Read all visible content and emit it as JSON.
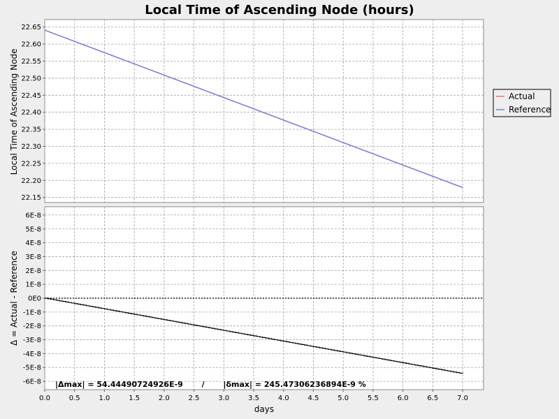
{
  "chart_data": {
    "title": "Local Time of Ascending Node (hours)",
    "xlabel": "days",
    "xlim": [
      0.0,
      7.35
    ],
    "x_ticks": [
      "0.0",
      "0.5",
      "1.0",
      "1.5",
      "2.0",
      "2.5",
      "3.0",
      "3.5",
      "4.0",
      "4.5",
      "5.0",
      "5.5",
      "6.0",
      "6.5",
      "7.0"
    ],
    "grid": true,
    "legend_position": "right",
    "legend": [
      "Actual",
      "Reference"
    ],
    "colors": {
      "Actual": "#ff6b6b",
      "Reference": "#7b7bd6",
      "delta": "#000000",
      "zero_line": "#000000"
    },
    "panels": [
      {
        "type": "line",
        "ylabel": "Local Time of Ascending Node",
        "ylim": [
          22.135,
          22.672
        ],
        "y_ticks": [
          "22.15",
          "22.20",
          "22.25",
          "22.30",
          "22.35",
          "22.40",
          "22.45",
          "22.50",
          "22.55",
          "22.60",
          "22.65"
        ],
        "series": [
          {
            "name": "Actual",
            "x": [
              0.0,
              7.0
            ],
            "y": [
              22.641,
              22.179
            ]
          },
          {
            "name": "Reference",
            "x": [
              0.0,
              7.0
            ],
            "y": [
              22.641,
              22.179
            ]
          }
        ]
      },
      {
        "type": "line",
        "ylabel": "Δ = Actual - Reference",
        "ylim": [
          -6.6e-08,
          6.6e-08
        ],
        "y_ticks": [
          "-6E-8",
          "-5E-8",
          "-4E-8",
          "-3E-8",
          "-2E-8",
          "-1E-8",
          "0E0",
          "1E-8",
          "2E-8",
          "3E-8",
          "4E-8",
          "5E-8",
          "6E-8"
        ],
        "y_tick_values": [
          -6e-08,
          -5e-08,
          -4e-08,
          -3e-08,
          -2e-08,
          -1e-08,
          0,
          1e-08,
          2e-08,
          3e-08,
          4e-08,
          5e-08,
          6e-08
        ],
        "series": [
          {
            "name": "delta",
            "x": [
              0.0,
              7.0
            ],
            "y": [
              0.0,
              -5.444490724926e-08
            ]
          }
        ],
        "zero_line": true
      }
    ],
    "annotation": "|Δmax| = 54.44490724926E-9       /       |δmax| = 245.47306236894E-9 %"
  }
}
